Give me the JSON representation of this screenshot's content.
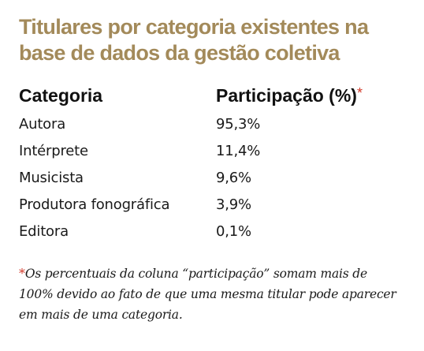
{
  "title": "Titulares por categoria existentes na base de dados da gestão coletiva",
  "table": {
    "headers": [
      "Categoria",
      "Participação (%)"
    ],
    "header_mark": "*",
    "rows": [
      [
        "Autora",
        "95,3%"
      ],
      [
        "Intérprete",
        "11,4%"
      ],
      [
        "Musicista",
        "9,6%"
      ],
      [
        "Produtora fonográfica",
        "3,9%"
      ],
      [
        "Editora",
        "0,1%"
      ]
    ]
  },
  "footnote": {
    "mark": "*",
    "text": "Os percentuais da coluna “participação” somam mais de 100% devido ao fato de que uma mesma titular pode aparecer em mais de uma categoria."
  },
  "colors": {
    "title": "#a38a5a",
    "asterisk": "#d23b2b"
  }
}
